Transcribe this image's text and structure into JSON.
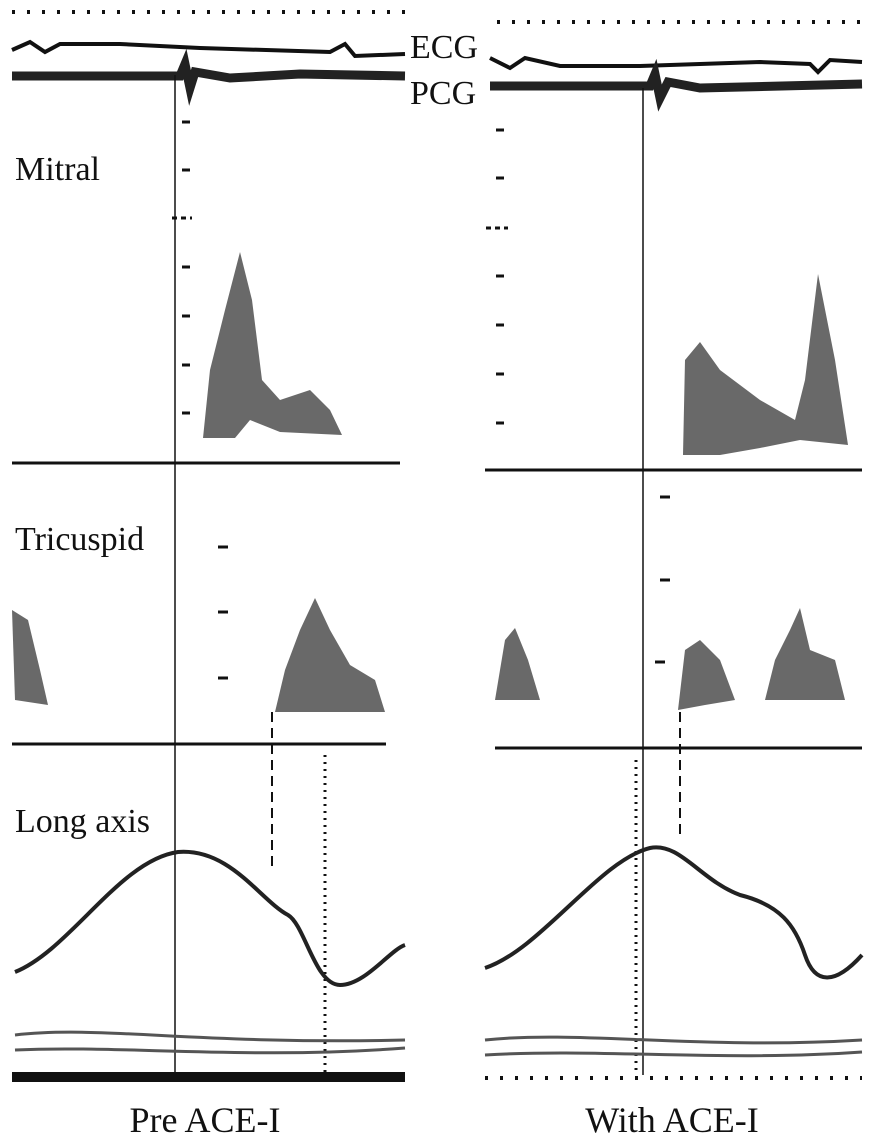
{
  "figure": {
    "trace_labels": {
      "ecg": "ECG",
      "pcg": "PCG"
    },
    "row_labels": [
      "Mitral",
      "Tricuspid",
      "Long axis"
    ],
    "captions": [
      "Pre ACE-I",
      "With ACE-I"
    ]
  }
}
